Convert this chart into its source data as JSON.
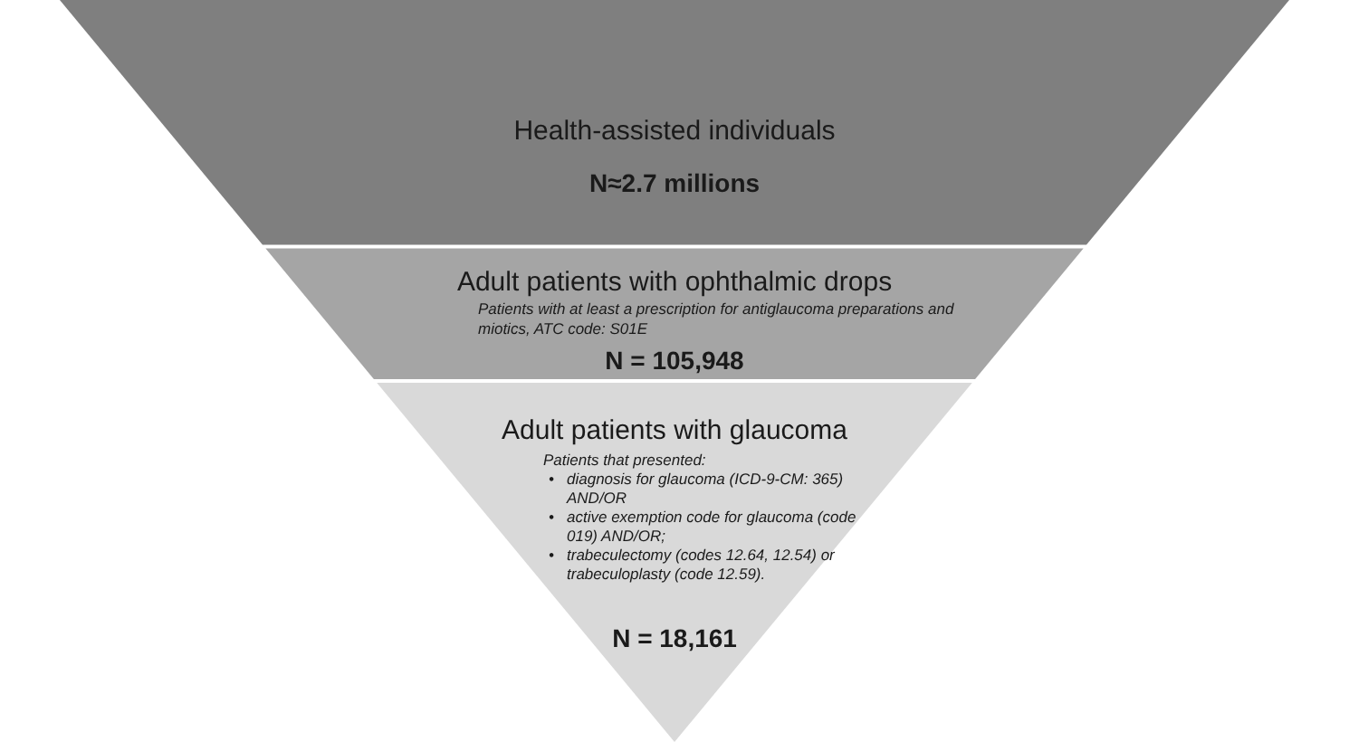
{
  "chart_data": {
    "type": "other",
    "categories": [
      "Health-assisted individuals",
      "Adult patients with ophthalmic drops",
      "Adult patients with glaucoma"
    ],
    "values": [
      2700000,
      105948,
      18161
    ],
    "value_labels": [
      "N≈2.7 millions",
      "N = 105,948",
      "N = 18,161"
    ],
    "colors": [
      "#7f7f7f",
      "#a5a5a5",
      "#d9d9d9"
    ],
    "annotations": [
      "Patients with at least a prescription for antiglaucoma preparations and\nmiotics, ATC code: S01E",
      "Patients that presented:\n• diagnosis for glaucoma (ICD-9-CM: 365)\nAND/OR\n• active exemption code for glaucoma (code\n019) AND/OR;\n• trabeculectomy (codes 12.64, 12.54) or\ntrabeculoplasty (code 12.59)."
    ]
  }
}
